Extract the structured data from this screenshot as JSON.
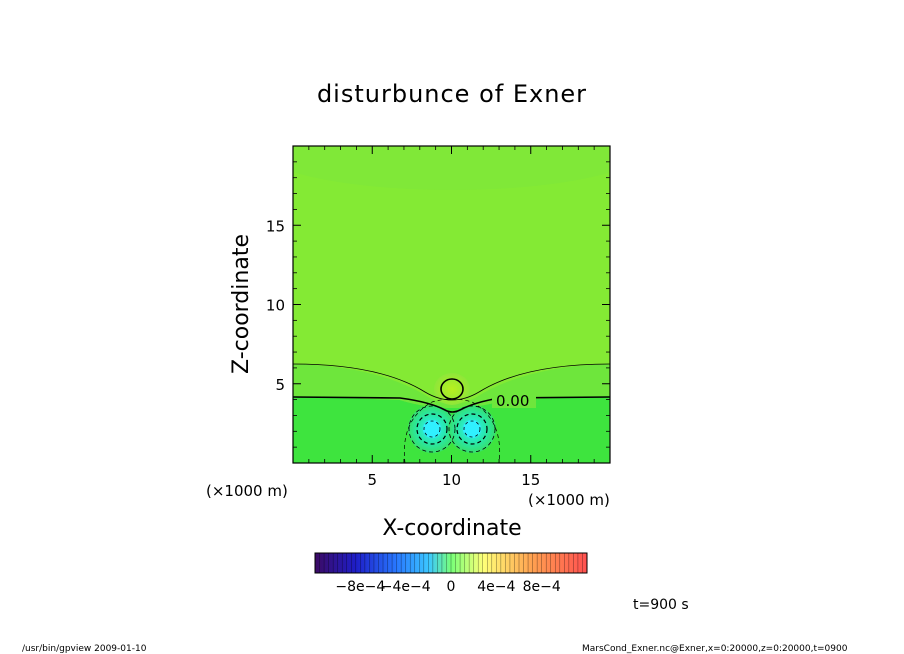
{
  "chart_data": {
    "type": "heatmap",
    "title": "disturbunce of Exner",
    "xlabel": "X-coordinate",
    "ylabel": "Z-coordinate",
    "x_unit": "(×1000 m)",
    "y_unit": "(×1000 m)",
    "xlim": [
      0,
      20
    ],
    "ylim": [
      0,
      20
    ],
    "x_ticks": [
      5,
      10,
      15
    ],
    "y_ticks": [
      5,
      10,
      15
    ],
    "x_tick_labels": [
      "5",
      "10",
      "15"
    ],
    "y_tick_labels": [
      "5",
      "10",
      "15"
    ],
    "contour_label": "0.00",
    "colorbar": {
      "min": -0.0012,
      "max": 0.0012,
      "tick_labels": [
        "−8e−4",
        "−4e−4",
        "0",
        "4e−4",
        "8e−4"
      ],
      "tick_values": [
        -0.0008,
        -0.0004,
        0,
        0.0004,
        0.0008
      ],
      "colors": [
        "#3c0a64",
        "#1e1ec8",
        "#2878ff",
        "#3cc8ff",
        "#78ff78",
        "#ffff78",
        "#ffa050",
        "#ff5050"
      ]
    },
    "features": [
      {
        "kind": "positive-bubble",
        "x": 10,
        "z": 4.5,
        "value": 0.0003
      },
      {
        "kind": "negative-vortex",
        "x": 8.6,
        "z": 2.1,
        "value": -0.0005
      },
      {
        "kind": "negative-vortex",
        "x": 11.4,
        "z": 2.1,
        "value": -0.0005
      }
    ],
    "time_label": "t=900 s"
  },
  "footer": {
    "left": "/usr/bin/gpview   2009-01-10",
    "right": "MarsCond_Exner.nc@Exner,x=0:20000,z=0:20000,t=0900"
  }
}
